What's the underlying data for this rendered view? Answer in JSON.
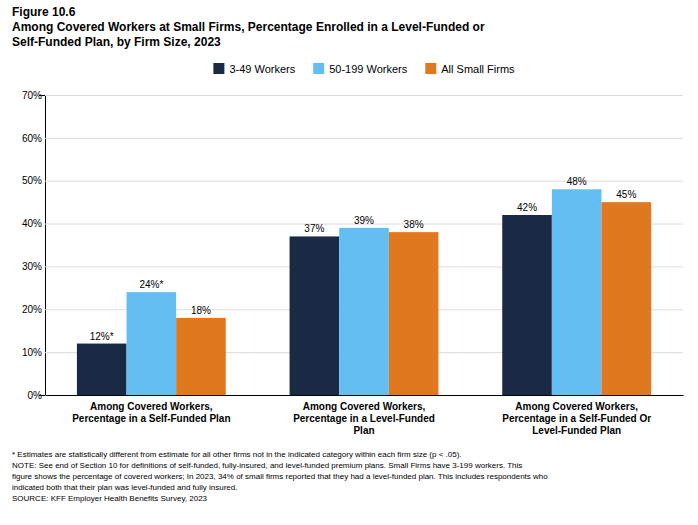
{
  "chart_data": {
    "type": "bar",
    "title": "Figure 10.6\nAmong Covered Workers at Small Firms, Percentage Enrolled in a Level-Funded or\nSelf-Funded Plan, by Firm Size, 2023",
    "categories": [
      "Among Covered Workers,\nPercentage in a Self-Funded Plan",
      "Among Covered Workers,\nPercentage in a Level-Funded\nPlan",
      "Among Covered Workers,\nPercentage in a Self-Funded Or\nLevel-Funded Plan"
    ],
    "series": [
      {
        "name": "3-49 Workers",
        "color": "#1b2a44",
        "values": [
          12,
          37,
          42
        ],
        "value_labels": [
          "12%*",
          "37%",
          "42%"
        ]
      },
      {
        "name": "50-199 Workers",
        "color": "#63bef2",
        "values": [
          24,
          39,
          48
        ],
        "value_labels": [
          "24%*",
          "39%",
          "48%"
        ]
      },
      {
        "name": "All Small Firms",
        "color": "#e07820",
        "values": [
          18,
          38,
          45
        ],
        "value_labels": [
          "18%",
          "38%",
          "45%"
        ]
      }
    ],
    "ylim": [
      0,
      70
    ],
    "yticks": [
      {
        "value": 0,
        "label": "0%"
      },
      {
        "value": 10,
        "label": "10%"
      },
      {
        "value": 20,
        "label": "20%"
      },
      {
        "value": 30,
        "label": "30%"
      },
      {
        "value": 40,
        "label": "40%"
      },
      {
        "value": 50,
        "label": "50%"
      },
      {
        "value": 60,
        "label": "60%"
      },
      {
        "value": 70,
        "label": "70%"
      }
    ],
    "grid": true,
    "legend": "top",
    "data_labels": true,
    "annotations": [
      "* Estimates are statistically different from estimate for all other firms not in the indicated category within each firm size (p < .05).",
      "NOTE: See end of Section 10 for definitions of self-funded, fully-insured, and level-funded premium plans. Small Firms have 3-199 workers. This",
      "figure shows the percentage of covered workers; In 2023, 34% of small firms reported that they had a level-funded plan. This includes respondents who",
      "indicated both that their plan was level-funded and fully insured.",
      "SOURCE: KFF Employer Health Benefits Survey, 2023"
    ]
  }
}
